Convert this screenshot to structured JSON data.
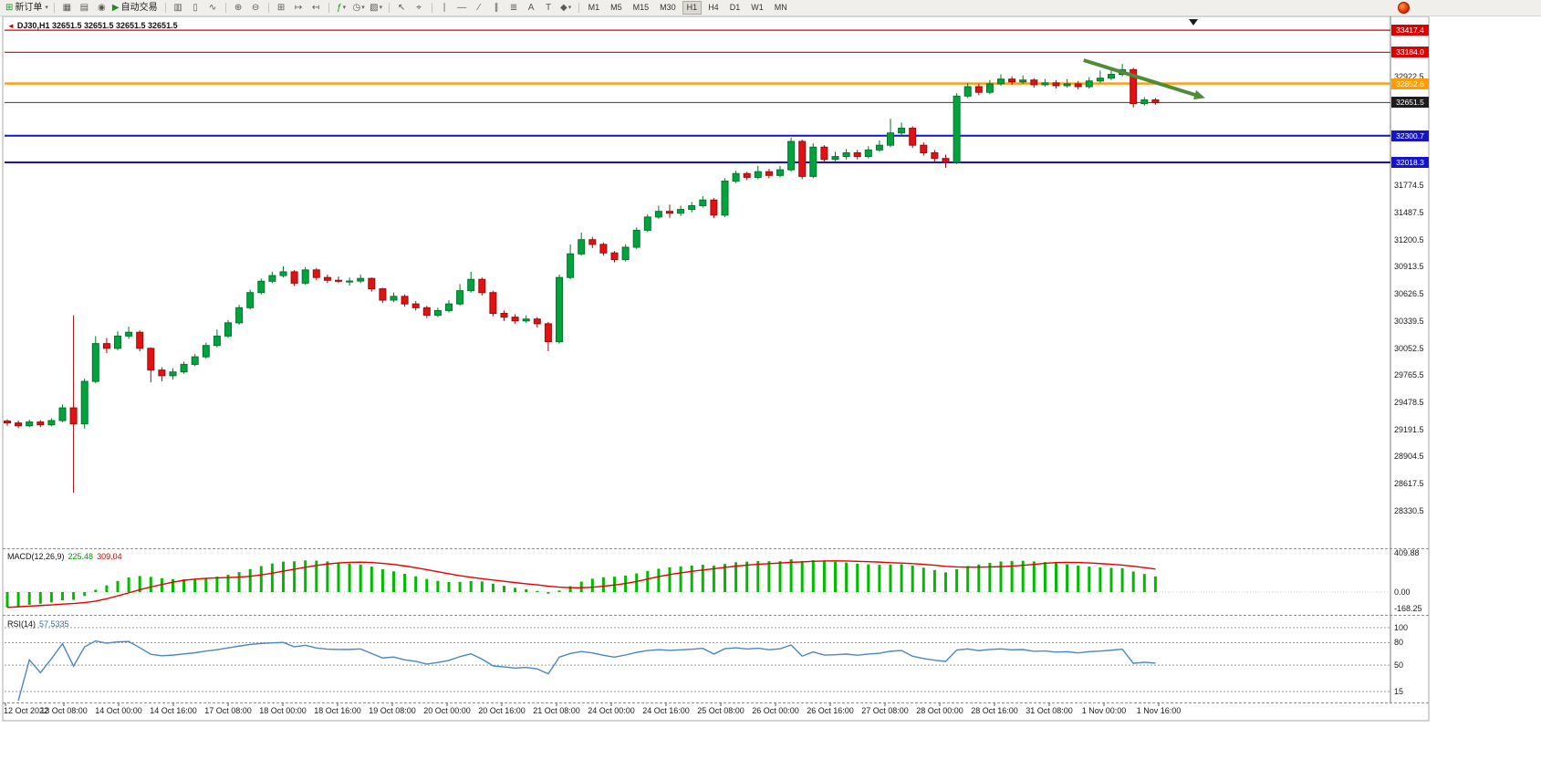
{
  "toolbar": {
    "new_order": "新订单",
    "autotrade": "自动交易",
    "timeframes": [
      "M1",
      "M5",
      "M15",
      "M30",
      "H1",
      "H4",
      "D1",
      "W1",
      "MN"
    ],
    "active_timeframe": "H1"
  },
  "icons": {
    "symbol_marker": "◄",
    "scroll_marker": "▼",
    "new_order": "⊞",
    "chart_window": "▦",
    "data_window": "▤",
    "refresh": "◉",
    "autotrade_play": "▶",
    "bar_chart": "▥",
    "candle_chart": "▯",
    "line_chart": "∿",
    "zoom_in": "⊕",
    "zoom_out": "⊖",
    "tile_windows": "⊞",
    "auto_scroll": "↦",
    "chart_shift": "↤",
    "indicators": "ƒ",
    "periods": "◷",
    "templates": "▨",
    "cursor": "↖",
    "crosshair": "⌖",
    "vline": "∣",
    "hline": "—",
    "trendline": "∕",
    "channel": "∥",
    "fibonacci": "≣",
    "text_tool": "A",
    "label_tool": "T",
    "shapes": "◆",
    "caret": "▾"
  },
  "chart_data": {
    "type": "candlestick",
    "symbol": "DJ30",
    "timeframe": "H1",
    "ohlc_title": "DJ30,H1 32651.5 32651.5 32651.5 32651.5",
    "current_price": 32651.5,
    "colors": {
      "up": "#00a33c",
      "up_border": "#00762b",
      "down": "#e31212",
      "down_border": "#9c0b0b",
      "macd_histogram": "#00bb00",
      "macd_signal": "#e80000",
      "rsi_line": "#4a86c8",
      "arrow": "#4e8c3a"
    },
    "price_lines": [
      {
        "price": 33417.4,
        "label": "33417.4",
        "color": "#dc0000",
        "box": "#dc0000",
        "width": 1.2
      },
      {
        "price": 33184.0,
        "label": "33184.0",
        "color": "#dc0000",
        "box": "#dc0000",
        "width": 1.2
      },
      {
        "price": 32852.6,
        "label": "32852.6",
        "color": "#ff9c00",
        "box": "#ff9c00",
        "width": 2.4
      },
      {
        "price": 32651.5,
        "label": "32651.5",
        "color": "#3c3c3c",
        "box": "#1d1d1d",
        "width": 1
      },
      {
        "price": 32300.7,
        "label": "32300.7",
        "color": "#1414cc",
        "box": "#1414cc",
        "width": 2
      },
      {
        "price": 32018.3,
        "label": "32018.3",
        "color": "#1414cc",
        "box": "#1414cc",
        "width": 2
      }
    ],
    "y_axis_labels": [
      "32922.5",
      "31774.5",
      "31487.5",
      "31200.5",
      "30913.5",
      "30626.5",
      "30339.5",
      "30052.5",
      "29765.5",
      "29478.5",
      "29191.5",
      "28904.5",
      "28617.5",
      "28330.5"
    ],
    "x_labels": [
      "12 Oct 2022",
      "13 Oct 08:00",
      "14 Oct 00:00",
      "14 Oct 16:00",
      "17 Oct 08:00",
      "18 Oct 00:00",
      "18 Oct 16:00",
      "19 Oct 08:00",
      "20 Oct 00:00",
      "20 Oct 16:00",
      "21 Oct 08:00",
      "24 Oct 00:00",
      "24 Oct 16:00",
      "25 Oct 08:00",
      "26 Oct 00:00",
      "26 Oct 16:00",
      "27 Oct 08:00",
      "28 Oct 00:00",
      "28 Oct 16:00",
      "31 Oct 08:00",
      "1 Nov 00:00",
      "1 Nov 16:00"
    ],
    "annotation_arrow": {
      "from": {
        "index": 97.5,
        "price": 33100
      },
      "to": {
        "index": 108.5,
        "price": 32700
      },
      "color": "#4e8c3a"
    },
    "indicators": {
      "macd": {
        "label": "MACD(12,26,9)",
        "value1": "225.48",
        "value2": "309.04",
        "axis": [
          {
            "v": 409.88,
            "t": "409.88"
          },
          {
            "v": 0,
            "t": "0.00"
          },
          {
            "v": -168.25,
            "t": "-168.25"
          }
        ]
      },
      "rsi": {
        "label": "RSI(14)",
        "value": "57.5335",
        "levels": [
          100,
          80,
          50,
          15
        ],
        "axis": [
          {
            "v": 100,
            "t": "100"
          },
          {
            "v": 80,
            "t": "80"
          },
          {
            "v": 50,
            "t": "50"
          },
          {
            "v": 15,
            "t": "15"
          }
        ]
      }
    },
    "candles": [
      [
        29280,
        29300,
        29230,
        29260
      ],
      [
        29260,
        29285,
        29205,
        29230
      ],
      [
        29230,
        29295,
        29215,
        29270
      ],
      [
        29270,
        29290,
        29215,
        29240
      ],
      [
        29240,
        29310,
        29225,
        29285
      ],
      [
        29285,
        29455,
        29270,
        29420
      ],
      [
        29420,
        30400,
        28520,
        29250
      ],
      [
        29250,
        29730,
        29200,
        29700
      ],
      [
        29700,
        30180,
        29680,
        30100
      ],
      [
        30100,
        30160,
        30000,
        30050
      ],
      [
        30050,
        30230,
        30030,
        30180
      ],
      [
        30180,
        30280,
        30150,
        30220
      ],
      [
        30220,
        30240,
        30020,
        30050
      ],
      [
        30050,
        30060,
        29690,
        29820
      ],
      [
        29820,
        29850,
        29700,
        29760
      ],
      [
        29760,
        29840,
        29720,
        29800
      ],
      [
        29800,
        29910,
        29780,
        29880
      ],
      [
        29880,
        29990,
        29860,
        29960
      ],
      [
        29960,
        30110,
        29940,
        30080
      ],
      [
        30080,
        30250,
        30060,
        30180
      ],
      [
        30180,
        30350,
        30160,
        30320
      ],
      [
        30320,
        30510,
        30300,
        30480
      ],
      [
        30480,
        30670,
        30460,
        30640
      ],
      [
        30640,
        30790,
        30620,
        30760
      ],
      [
        30760,
        30860,
        30740,
        30820
      ],
      [
        30820,
        30920,
        30800,
        30860
      ],
      [
        30860,
        30880,
        30710,
        30740
      ],
      [
        30740,
        30910,
        30720,
        30880
      ],
      [
        30880,
        30900,
        30770,
        30800
      ],
      [
        30800,
        30830,
        30740,
        30770
      ],
      [
        30770,
        30810,
        30740,
        30760
      ],
      [
        30760,
        30800,
        30715,
        30762
      ],
      [
        30762,
        30830,
        30740,
        30790
      ],
      [
        30790,
        30800,
        30650,
        30680
      ],
      [
        30680,
        30690,
        30530,
        30560
      ],
      [
        30560,
        30640,
        30540,
        30600
      ],
      [
        30600,
        30620,
        30490,
        30520
      ],
      [
        30520,
        30550,
        30450,
        30480
      ],
      [
        30480,
        30500,
        30370,
        30400
      ],
      [
        30400,
        30480,
        30380,
        30450
      ],
      [
        30450,
        30560,
        30430,
        30520
      ],
      [
        30520,
        30730,
        30500,
        30660
      ],
      [
        30660,
        30860,
        30640,
        30780
      ],
      [
        30780,
        30800,
        30610,
        30640
      ],
      [
        30640,
        30660,
        30390,
        30420
      ],
      [
        30420,
        30450,
        30340,
        30380
      ],
      [
        30380,
        30410,
        30310,
        30340
      ],
      [
        30340,
        30400,
        30320,
        30360
      ],
      [
        30360,
        30380,
        30270,
        30310
      ],
      [
        30310,
        30330,
        30020,
        30120
      ],
      [
        30120,
        30830,
        30100,
        30800
      ],
      [
        30800,
        31150,
        30780,
        31050
      ],
      [
        31050,
        31275,
        31030,
        31200
      ],
      [
        31200,
        31230,
        31110,
        31150
      ],
      [
        31150,
        31170,
        31030,
        31060
      ],
      [
        31060,
        31080,
        30960,
        30990
      ],
      [
        30990,
        31150,
        30970,
        31120
      ],
      [
        31120,
        31330,
        31100,
        31300
      ],
      [
        31300,
        31470,
        31280,
        31440
      ],
      [
        31440,
        31560,
        31420,
        31500
      ],
      [
        31500,
        31570,
        31430,
        31480
      ],
      [
        31480,
        31560,
        31450,
        31520
      ],
      [
        31520,
        31600,
        31490,
        31560
      ],
      [
        31560,
        31660,
        31540,
        31620
      ],
      [
        31620,
        31640,
        31430,
        31460
      ],
      [
        31460,
        31850,
        31440,
        31820
      ],
      [
        31820,
        31930,
        31800,
        31900
      ],
      [
        31900,
        31920,
        31830,
        31860
      ],
      [
        31860,
        31980,
        31840,
        31920
      ],
      [
        31920,
        31950,
        31850,
        31880
      ],
      [
        31880,
        31980,
        31860,
        31940
      ],
      [
        31940,
        32280,
        31920,
        32240
      ],
      [
        32240,
        32260,
        31840,
        31870
      ],
      [
        31870,
        32220,
        31850,
        32180
      ],
      [
        32180,
        32200,
        32020,
        32050
      ],
      [
        32050,
        32130,
        32030,
        32080
      ],
      [
        32080,
        32160,
        32050,
        32120
      ],
      [
        32120,
        32150,
        32050,
        32080
      ],
      [
        32080,
        32190,
        32060,
        32150
      ],
      [
        32150,
        32250,
        32130,
        32200
      ],
      [
        32200,
        32480,
        32180,
        32330
      ],
      [
        32330,
        32440,
        32300,
        32380
      ],
      [
        32380,
        32400,
        32170,
        32200
      ],
      [
        32200,
        32230,
        32090,
        32120
      ],
      [
        32120,
        32150,
        32020,
        32060
      ],
      [
        32060,
        32100,
        31960,
        32020
      ],
      [
        32020,
        32750,
        32000,
        32720
      ],
      [
        32720,
        32860,
        32700,
        32820
      ],
      [
        32820,
        32850,
        32730,
        32760
      ],
      [
        32760,
        32890,
        32740,
        32850
      ],
      [
        32850,
        32950,
        32830,
        32900
      ],
      [
        32900,
        32930,
        32840,
        32870
      ],
      [
        32870,
        32940,
        32850,
        32890
      ],
      [
        32890,
        32910,
        32810,
        32840
      ],
      [
        32840,
        32900,
        32820,
        32860
      ],
      [
        32860,
        32890,
        32800,
        32830
      ],
      [
        32830,
        32900,
        32810,
        32850
      ],
      [
        32850,
        32880,
        32790,
        32820
      ],
      [
        32820,
        32920,
        32800,
        32880
      ],
      [
        32880,
        32990,
        32860,
        32910
      ],
      [
        32910,
        33010,
        32890,
        32950
      ],
      [
        32950,
        33060,
        32930,
        33000
      ],
      [
        33000,
        33020,
        32600,
        32640
      ],
      [
        32640,
        32710,
        32620,
        32680
      ],
      [
        32680,
        32700,
        32630,
        32651.5
      ]
    ]
  }
}
